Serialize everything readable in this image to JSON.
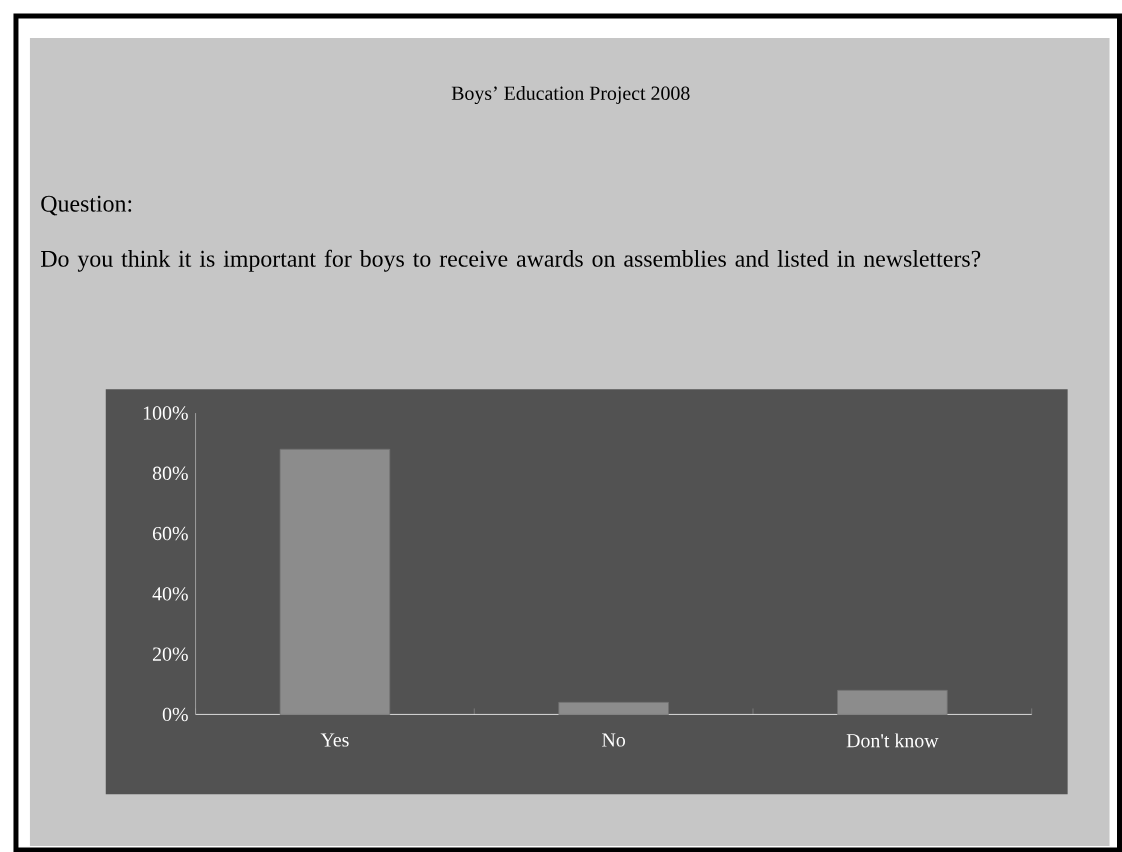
{
  "chart_data": {
    "type": "bar",
    "title": "Boys’ Education Project 2008",
    "subtitle": "Question:",
    "annotations": [
      "Do you think it is important for boys to receive awards on assemblies and listed in newsletters?"
    ],
    "categories": [
      "Yes",
      "No",
      "Don't know"
    ],
    "values": [
      88,
      4,
      8
    ],
    "color": "#8c8c8c",
    "ylim": [
      0,
      100
    ],
    "yticks": [
      {
        "value": 0,
        "label": "0%"
      },
      {
        "value": 20,
        "label": "20%"
      },
      {
        "value": 40,
        "label": "40%"
      },
      {
        "value": 60,
        "label": "60%"
      },
      {
        "value": 80,
        "label": "80%"
      },
      {
        "value": 100,
        "label": "100%"
      }
    ]
  }
}
